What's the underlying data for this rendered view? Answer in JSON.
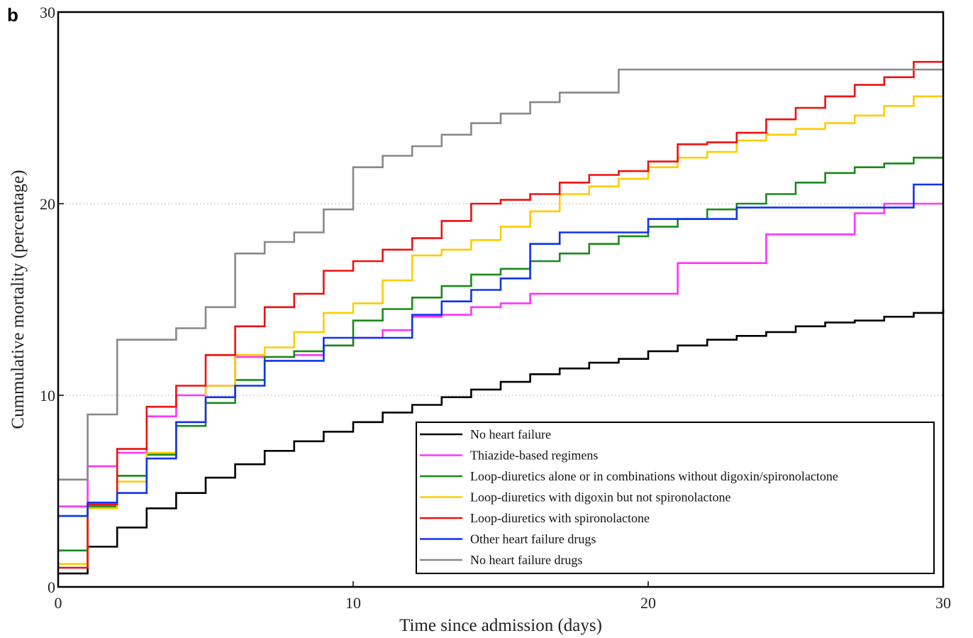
{
  "chart_data": {
    "type": "line",
    "step": true,
    "panel_label": "b",
    "xlabel": "Time since admission (days)",
    "ylabel": "Cummulative mortality (percentage)",
    "xlim": [
      0,
      30
    ],
    "ylim": [
      0,
      30
    ],
    "xticks": [
      0,
      10,
      20,
      30
    ],
    "yticks": [
      0,
      10,
      20,
      30
    ],
    "grid": "horizontal dotted at 10 and 20",
    "legend_position": "bottom-right",
    "series": [
      {
        "name": "No heart failure",
        "color": "#000000",
        "values": [
          0.7,
          2.1,
          3.1,
          4.1,
          4.9,
          5.7,
          6.4,
          7.1,
          7.6,
          8.1,
          8.6,
          9.1,
          9.5,
          9.9,
          10.3,
          10.7,
          11.1,
          11.4,
          11.7,
          11.9,
          12.3,
          12.6,
          12.9,
          13.1,
          13.3,
          13.6,
          13.8,
          13.9,
          14.1,
          14.3,
          14.5
        ]
      },
      {
        "name": "Thiazide-based regimens",
        "color": "#ff33ff",
        "values": [
          4.2,
          6.3,
          7.0,
          8.9,
          10.0,
          10.5,
          12.0,
          12.0,
          12.1,
          12.6,
          13.0,
          13.4,
          14.1,
          14.2,
          14.6,
          14.8,
          15.3,
          15.3,
          15.3,
          15.3,
          15.3,
          16.9,
          16.9,
          16.9,
          18.4,
          18.4,
          18.4,
          19.5,
          20.0,
          20.0,
          20.0
        ]
      },
      {
        "name": "Loop-diuretics alone or in combinations without digoxin/spironolactone",
        "color": "#1a8a1a",
        "values": [
          1.9,
          4.2,
          5.8,
          6.9,
          8.4,
          9.6,
          10.8,
          12.0,
          12.3,
          12.6,
          13.9,
          14.5,
          15.1,
          15.7,
          16.3,
          16.6,
          17.0,
          17.4,
          17.9,
          18.3,
          18.8,
          19.2,
          19.7,
          20.0,
          20.5,
          21.1,
          21.6,
          21.9,
          22.1,
          22.4,
          22.4
        ]
      },
      {
        "name": "Loop-diuretics with digoxin but not spironolactone",
        "color": "#ffcc00",
        "values": [
          1.2,
          4.1,
          5.5,
          7.0,
          8.6,
          10.5,
          12.1,
          12.5,
          13.3,
          14.3,
          14.8,
          16.0,
          17.3,
          17.6,
          18.1,
          18.8,
          19.6,
          20.5,
          20.9,
          21.3,
          21.9,
          22.4,
          22.7,
          23.3,
          23.6,
          23.9,
          24.2,
          24.6,
          25.1,
          25.6,
          25.6
        ]
      },
      {
        "name": "Loop-diuretics with spironolactone",
        "color": "#ee1111",
        "values": [
          1.0,
          4.3,
          7.2,
          9.4,
          10.5,
          12.1,
          13.6,
          14.6,
          15.3,
          16.5,
          17.0,
          17.6,
          18.2,
          19.1,
          20.0,
          20.2,
          20.5,
          21.1,
          21.5,
          21.7,
          22.2,
          23.1,
          23.2,
          23.7,
          24.4,
          25.0,
          25.6,
          26.2,
          26.6,
          27.4,
          27.4
        ]
      },
      {
        "name": "Other heart failure drugs",
        "color": "#1133ee",
        "values": [
          3.7,
          4.4,
          4.9,
          6.7,
          8.6,
          9.9,
          10.5,
          11.8,
          11.8,
          13.0,
          13.0,
          13.0,
          14.2,
          14.9,
          15.5,
          16.1,
          17.9,
          18.5,
          18.5,
          18.5,
          19.2,
          19.2,
          19.2,
          19.8,
          19.8,
          19.8,
          19.8,
          19.8,
          19.8,
          21.0,
          21.0
        ]
      },
      {
        "name": "No heart failure drugs",
        "color": "#888888",
        "values": [
          5.6,
          9.0,
          12.9,
          12.9,
          13.5,
          14.6,
          17.4,
          18.0,
          18.5,
          19.7,
          21.9,
          22.5,
          23.0,
          23.6,
          24.2,
          24.7,
          25.3,
          25.8,
          25.8,
          27.0,
          27.0,
          27.0,
          27.0,
          27.0,
          27.0,
          27.0,
          27.0,
          27.0,
          27.0,
          27.0,
          27.0
        ]
      }
    ]
  }
}
